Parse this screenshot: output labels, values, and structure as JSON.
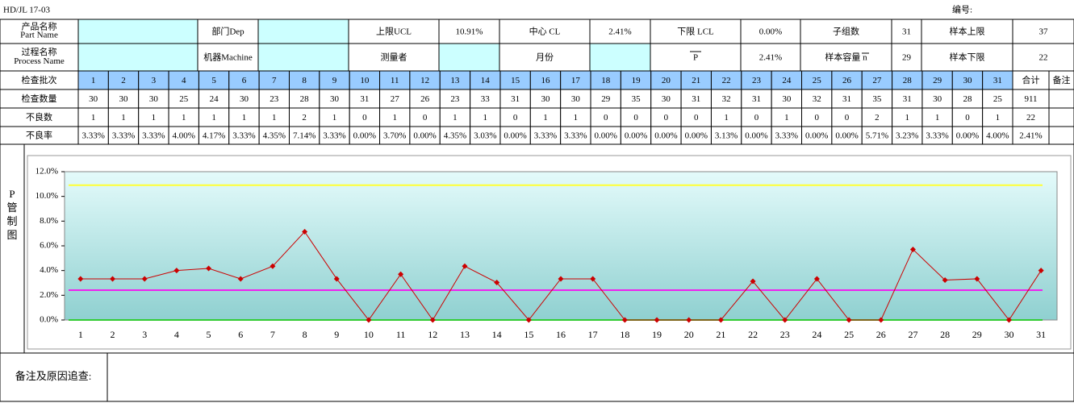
{
  "header": {
    "code": "HD/JL 17-03",
    "number_label": "编号:"
  },
  "info": {
    "part_name": [
      "产品名称",
      "Part Name"
    ],
    "dept": "部门Dep",
    "ucl_label": "上限UCL",
    "ucl": "10.91%",
    "cl_label": "中心 CL",
    "cl": "2.41%",
    "lcl_label": "下限 LCL",
    "lcl": "0.00%",
    "subgroups_label": "子组数",
    "subgroups": "31",
    "sample_max_label": "样本上限",
    "sample_max": "37",
    "process_name": [
      "过程名称",
      "Process Name"
    ],
    "machine": "机器Machine",
    "measurer": "测量者",
    "month": "月份",
    "p_bar": "P",
    "p_bar_value": "2.41%",
    "n_bar_label": "样本容量 n",
    "n_bar": "29",
    "sample_min_label": "样本下限",
    "sample_min": "22"
  },
  "table": {
    "row_labels": [
      "检查批次",
      "检查数量",
      "不良数",
      "不良率"
    ],
    "batches": [
      1,
      2,
      3,
      4,
      5,
      6,
      7,
      8,
      9,
      10,
      11,
      12,
      13,
      14,
      15,
      16,
      17,
      18,
      19,
      20,
      21,
      22,
      23,
      24,
      25,
      26,
      27,
      28,
      29,
      30,
      31
    ],
    "total_label": "合计",
    "remark_label": "备注",
    "counts": [
      30,
      30,
      30,
      25,
      24,
      30,
      23,
      28,
      30,
      31,
      27,
      26,
      23,
      33,
      31,
      30,
      30,
      29,
      35,
      30,
      31,
      32,
      31,
      30,
      32,
      31,
      35,
      31,
      30,
      28,
      25
    ],
    "count_total": 911,
    "defects": [
      1,
      1,
      1,
      1,
      1,
      1,
      1,
      2,
      1,
      0,
      1,
      0,
      1,
      1,
      0,
      1,
      1,
      0,
      0,
      0,
      0,
      1,
      0,
      1,
      0,
      0,
      2,
      1,
      1,
      0,
      1
    ],
    "defect_total": 22,
    "rates": [
      "3.33%",
      "3.33%",
      "3.33%",
      "4.00%",
      "4.17%",
      "3.33%",
      "4.35%",
      "7.14%",
      "3.33%",
      "0.00%",
      "3.70%",
      "0.00%",
      "4.35%",
      "3.03%",
      "0.00%",
      "3.33%",
      "3.33%",
      "0.00%",
      "0.00%",
      "0.00%",
      "0.00%",
      "3.13%",
      "0.00%",
      "3.33%",
      "0.00%",
      "0.00%",
      "5.71%",
      "3.23%",
      "3.33%",
      "0.00%",
      "4.00%"
    ],
    "rate_total": "2.41%"
  },
  "chart_data": {
    "type": "line",
    "side_label": [
      "P",
      "管",
      "制",
      "图"
    ],
    "categories": [
      1,
      2,
      3,
      4,
      5,
      6,
      7,
      8,
      9,
      10,
      11,
      12,
      13,
      14,
      15,
      16,
      17,
      18,
      19,
      20,
      21,
      22,
      23,
      24,
      25,
      26,
      27,
      28,
      29,
      30,
      31
    ],
    "values": [
      3.33,
      3.33,
      3.33,
      4.0,
      4.17,
      3.33,
      4.35,
      7.14,
      3.33,
      0.0,
      3.7,
      0.0,
      4.35,
      3.03,
      0.0,
      3.33,
      3.33,
      0.0,
      0.0,
      0.0,
      0.0,
      3.13,
      0.0,
      3.33,
      0.0,
      0.0,
      5.71,
      3.23,
      3.33,
      0.0,
      4.0
    ],
    "color": "#cc0000",
    "ylim": [
      0,
      12
    ],
    "yticks": [
      {
        "value": 0,
        "label": "0.0%"
      },
      {
        "value": 2,
        "label": "2.0%"
      },
      {
        "value": 4,
        "label": "4.0%"
      },
      {
        "value": 6,
        "label": "6.0%"
      },
      {
        "value": 8,
        "label": "8.0%"
      },
      {
        "value": 10,
        "label": "10.0%"
      },
      {
        "value": 12,
        "label": "12.0%"
      }
    ],
    "reference_lines": [
      {
        "value": 10.91,
        "color": "#ffff33"
      },
      {
        "value": 2.41,
        "color": "#ee22ee"
      },
      {
        "value": 0,
        "color": "#33cc33"
      }
    ]
  },
  "footer": {
    "remarks_label": "备注及原因追查:"
  }
}
